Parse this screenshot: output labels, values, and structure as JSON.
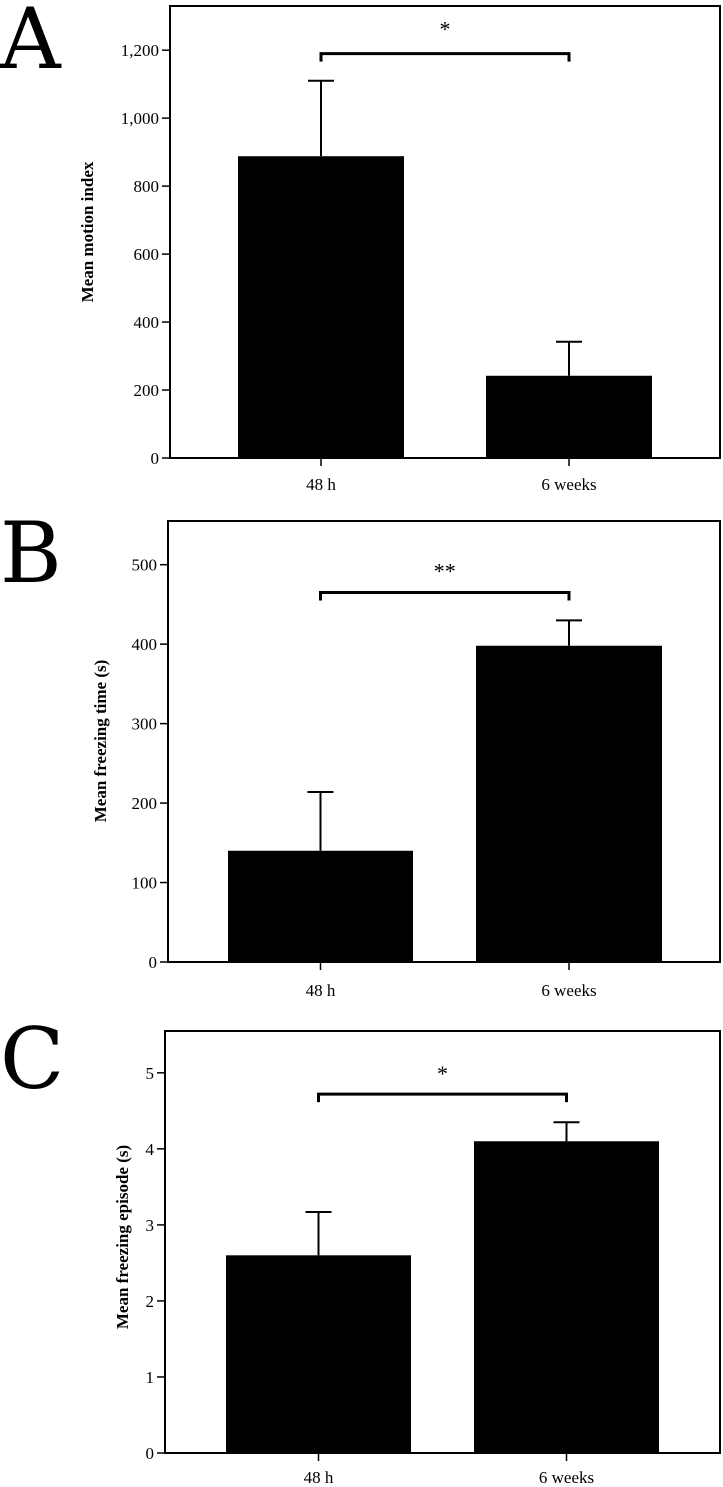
{
  "figure": {
    "background": "#ffffff",
    "bar_color": "#000000"
  },
  "chart_data": [
    {
      "panel": "A",
      "type": "bar",
      "title": "",
      "xlabel": "",
      "ylabel": "Mean motion index",
      "categories": [
        "48 h",
        "6 weeks"
      ],
      "values": [
        888,
        242
      ],
      "errors": [
        222,
        100
      ],
      "ylim": [
        0,
        1330
      ],
      "yticks": [
        0,
        200,
        400,
        600,
        800,
        1000,
        1200
      ],
      "ytick_labels": [
        "0",
        "200",
        "400",
        "600",
        "800",
        "1,000",
        "1,200"
      ],
      "grid": false,
      "significance": {
        "label": "*",
        "from": 0,
        "to": 1,
        "level": 1190
      }
    },
    {
      "panel": "B",
      "type": "bar",
      "title": "",
      "xlabel": "",
      "ylabel": "Mean freezing time (s)",
      "categories": [
        "48 h",
        "6 weeks"
      ],
      "values": [
        140,
        398
      ],
      "errors": [
        74,
        32
      ],
      "ylim": [
        0,
        555
      ],
      "yticks": [
        0,
        100,
        200,
        300,
        400,
        500
      ],
      "ytick_labels": [
        "0",
        "100",
        "200",
        "300",
        "400",
        "500"
      ],
      "grid": false,
      "significance": {
        "label": "**",
        "from": 0,
        "to": 1,
        "level": 465
      }
    },
    {
      "panel": "C",
      "type": "bar",
      "title": "",
      "xlabel": "",
      "ylabel": "Mean freezing episode (s)",
      "categories": [
        "48 h",
        "6 weeks"
      ],
      "values": [
        2.6,
        4.1
      ],
      "errors": [
        0.57,
        0.25
      ],
      "ylim": [
        0,
        5.55
      ],
      "yticks": [
        0,
        1,
        2,
        3,
        4,
        5
      ],
      "ytick_labels": [
        "0",
        "1",
        "2",
        "3",
        "4",
        "5"
      ],
      "grid": false,
      "significance": {
        "label": "*",
        "from": 0,
        "to": 1,
        "level": 4.72
      }
    }
  ]
}
